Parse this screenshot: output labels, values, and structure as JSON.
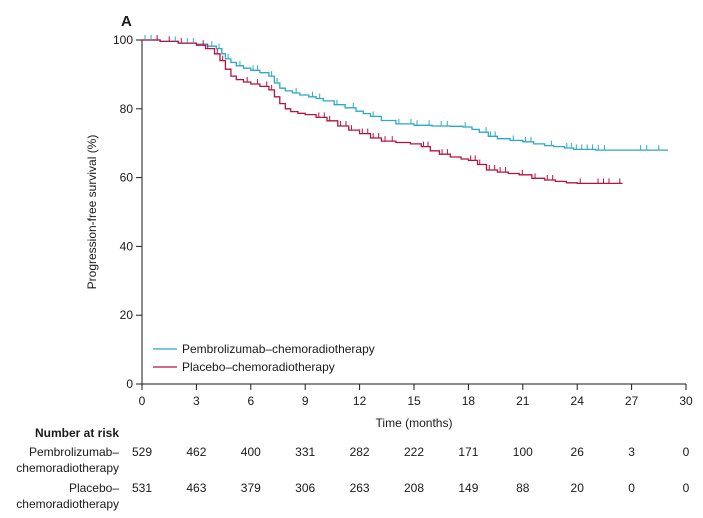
{
  "chart_data": {
    "type": "line",
    "panel_label": "A",
    "xlabel": "Time (months)",
    "ylabel": "Progression-free survival (%)",
    "xlim": [
      0,
      30
    ],
    "ylim": [
      0,
      100
    ],
    "x_ticks": [
      0,
      3,
      6,
      9,
      12,
      15,
      18,
      21,
      24,
      27,
      30
    ],
    "y_ticks": [
      0,
      20,
      40,
      60,
      80,
      100
    ],
    "grid": false,
    "legend_position": "lower-left",
    "series": [
      {
        "name": "Pembrolizumab–chemoradiotherapy",
        "color": "#2aa9c8",
        "x": [
          0,
          1,
          2,
          3,
          3.6,
          4.1,
          4.4,
          4.6,
          4.9,
          5.2,
          5.6,
          6.0,
          6.5,
          7.0,
          7.3,
          7.6,
          7.9,
          8.3,
          8.7,
          9.2,
          9.6,
          10.0,
          10.6,
          11.2,
          11.8,
          12.2,
          12.6,
          13.2,
          14.0,
          15.0,
          16.0,
          17.0,
          17.7,
          18.2,
          18.6,
          19.1,
          19.6,
          20.3,
          21.0,
          21.6,
          22.2,
          22.7,
          23.3,
          23.8,
          25.0,
          27.0,
          29.0
        ],
        "y": [
          100,
          99.6,
          99.1,
          98.8,
          98.2,
          97.5,
          96.0,
          94.5,
          93.5,
          92.5,
          91.8,
          91.2,
          90.5,
          89.5,
          87.5,
          86.0,
          85.2,
          84.6,
          84.0,
          83.5,
          83.0,
          82.3,
          81.2,
          80.3,
          79.3,
          78.6,
          77.8,
          76.6,
          75.6,
          75.2,
          75.0,
          74.9,
          74.7,
          74.0,
          73.2,
          72.0,
          71.3,
          70.8,
          70.4,
          69.8,
          69.3,
          69.0,
          68.6,
          68.2,
          68.0,
          68.0,
          68.0
        ]
      },
      {
        "name": "Placebo–chemoradiotherapy",
        "color": "#b5123f",
        "x": [
          0,
          1,
          2,
          3,
          3.5,
          4.0,
          4.3,
          4.6,
          4.9,
          5.2,
          5.6,
          6.0,
          6.5,
          7.0,
          7.3,
          7.6,
          7.9,
          8.2,
          8.6,
          9.0,
          9.6,
          10.2,
          10.8,
          11.4,
          12.0,
          12.6,
          13.2,
          14.0,
          14.8,
          15.4,
          15.9,
          16.4,
          17.0,
          17.6,
          18.0,
          18.5,
          19.0,
          19.6,
          20.2,
          20.8,
          21.5,
          22.2,
          22.8,
          23.4,
          24.0,
          25.0,
          26.5
        ],
        "y": [
          100,
          99.6,
          99.1,
          98.5,
          97.5,
          96.0,
          94.0,
          91.5,
          89.5,
          88.5,
          87.8,
          87.2,
          86.5,
          85.5,
          83.5,
          81.5,
          80.0,
          79.2,
          78.7,
          78.3,
          77.5,
          76.5,
          75.0,
          73.8,
          72.8,
          71.5,
          70.6,
          70.2,
          69.8,
          69.0,
          67.8,
          66.8,
          66.0,
          65.4,
          65.0,
          63.8,
          62.2,
          61.6,
          61.2,
          60.8,
          59.8,
          59.3,
          58.9,
          58.5,
          58.3,
          58.3,
          58.3
        ]
      }
    ],
    "risk_table": {
      "title": "Number at risk",
      "x_ticks": [
        0,
        3,
        6,
        9,
        12,
        15,
        18,
        21,
        24,
        27,
        30
      ],
      "rows": [
        {
          "label_line1": "Pembrolizumab–",
          "label_line2": "chemoradiotherapy",
          "values": [
            "529",
            "462",
            "400",
            "331",
            "282",
            "222",
            "171",
            "100",
            "26",
            "3",
            "0"
          ]
        },
        {
          "label_line1": "Placebo–",
          "label_line2": "chemoradiotherapy",
          "values": [
            "531",
            "463",
            "379",
            "306",
            "263",
            "208",
            "149",
            "88",
            "20",
            "0",
            "0"
          ]
        }
      ]
    }
  }
}
